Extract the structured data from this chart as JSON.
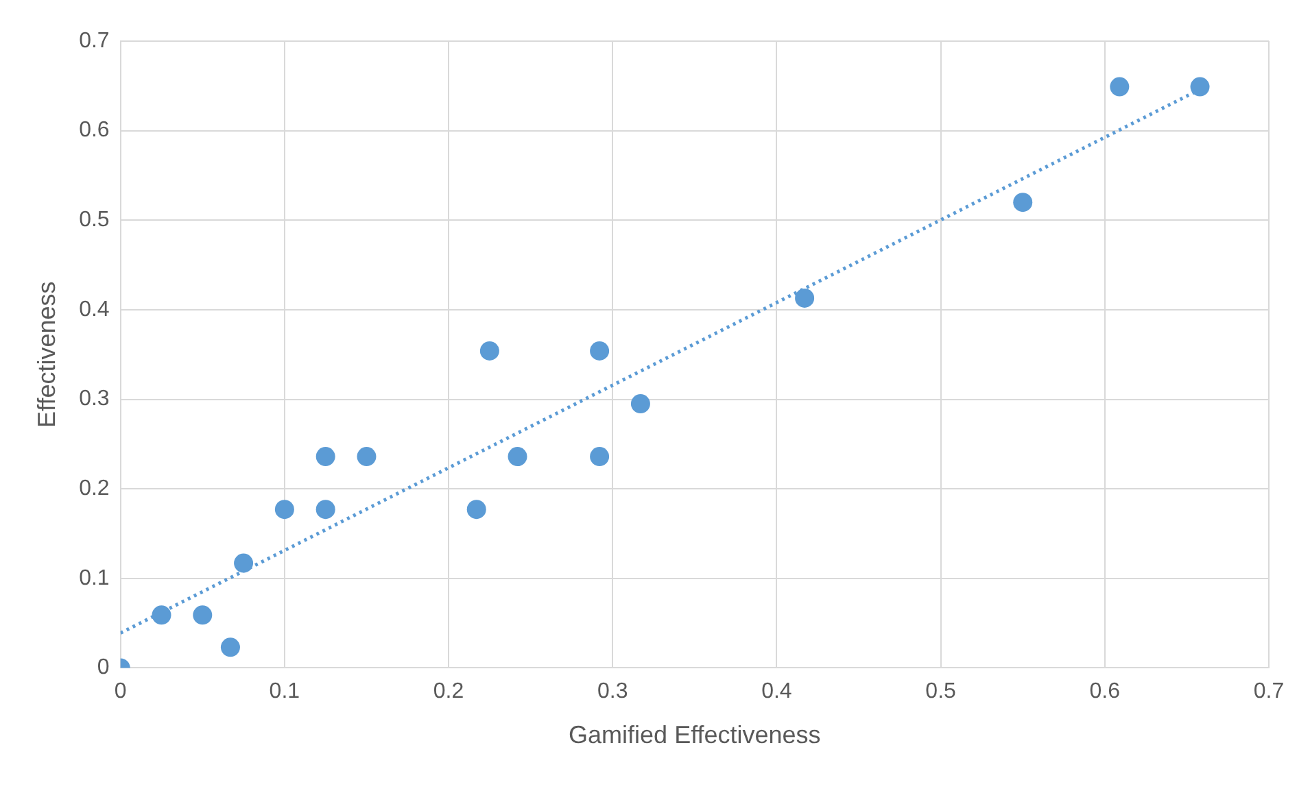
{
  "chart_data": {
    "type": "scatter",
    "xlabel": "Gamified Effectiveness",
    "ylabel": "Effectiveness",
    "xlim": [
      0,
      0.7
    ],
    "xticks": [
      0,
      0.1,
      0.2,
      0.3,
      0.4,
      0.5,
      0.6,
      0.7
    ],
    "ylim": [
      0,
      0.7
    ],
    "yticks": [
      0,
      0.1,
      0.2,
      0.3,
      0.4,
      0.5,
      0.6,
      0.7
    ],
    "grid": true,
    "legend": false,
    "series": [
      {
        "color": "#5b9bd5",
        "marker": "circle",
        "x": [
          0,
          0.025,
          0.05,
          0.067,
          0.075,
          0.1,
          0.125,
          0.125,
          0.15,
          0.217,
          0.225,
          0.242,
          0.292,
          0.292,
          0.317,
          0.417,
          0.55,
          0.609,
          0.658
        ],
        "values": [
          0,
          0.059,
          0.059,
          0.023,
          0.117,
          0.177,
          0.177,
          0.236,
          0.236,
          0.177,
          0.354,
          0.236,
          0.354,
          0.236,
          0.295,
          0.413,
          0.52,
          0.649,
          0.649
        ]
      },
      {
        "type": "line",
        "color": "#5b9bd5",
        "marker": "none",
        "line_style": "dotted",
        "x": [
          0,
          0.658
        ],
        "values": [
          0.039,
          0.646
        ]
      }
    ]
  }
}
